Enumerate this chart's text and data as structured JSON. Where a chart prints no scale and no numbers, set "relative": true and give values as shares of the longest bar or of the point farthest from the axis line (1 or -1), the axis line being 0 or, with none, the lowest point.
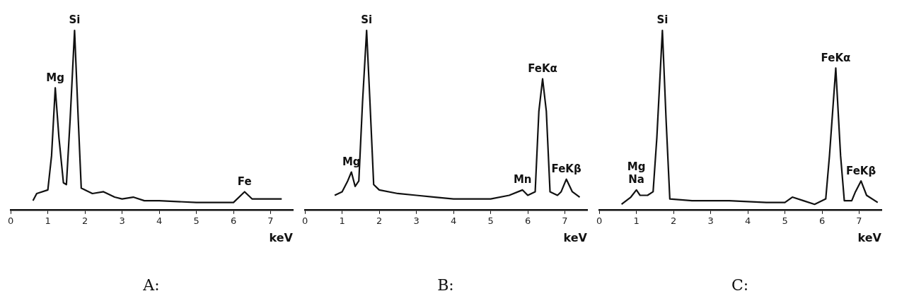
{
  "chart_data": [
    {
      "type": "line",
      "title": "A:",
      "xlabel": "keV",
      "relative": true,
      "marker": "none",
      "color": "#111111",
      "xlim": [
        0,
        7.6
      ],
      "xticks": [
        0,
        1,
        2,
        3,
        4,
        5,
        6,
        7
      ],
      "x": [
        0.6,
        0.7,
        1.0,
        1.1,
        1.2,
        1.3,
        1.42,
        1.5,
        1.6,
        1.72,
        1.82,
        1.9,
        2.2,
        2.5,
        2.8,
        3.0,
        3.3,
        3.6,
        4.0,
        5.0,
        5.7,
        6.0,
        6.3,
        6.5,
        6.7,
        7.0,
        7.3
      ],
      "values": [
        0.05,
        0.09,
        0.11,
        0.3,
        0.68,
        0.4,
        0.15,
        0.14,
        0.5,
        1,
        0.5,
        0.12,
        0.09,
        0.1,
        0.07,
        0.06,
        0.07,
        0.05,
        0.05,
        0.04,
        0.04,
        0.04,
        0.1,
        0.06,
        0.06,
        0.06,
        0.06
      ],
      "annotations": [
        {
          "text": "Mg",
          "x": 1.2,
          "y": 0.68
        },
        {
          "text": "Si",
          "x": 1.72,
          "y": 1
        },
        {
          "text": "Fe",
          "x": 6.3,
          "y": 0.1
        }
      ]
    },
    {
      "type": "line",
      "title": "B:",
      "xlabel": "keV",
      "relative": true,
      "marker": "none",
      "color": "#111111",
      "xlim": [
        0,
        7.6
      ],
      "xticks": [
        0,
        1,
        2,
        3,
        4,
        5,
        6,
        7
      ],
      "x": [
        0.8,
        1.0,
        1.15,
        1.25,
        1.35,
        1.45,
        1.55,
        1.66,
        1.75,
        1.85,
        2.0,
        2.5,
        3.0,
        3.5,
        4.0,
        4.5,
        5.0,
        5.5,
        5.86,
        6.0,
        6.2,
        6.3,
        6.4,
        6.5,
        6.6,
        6.8,
        6.9,
        7.04,
        7.2,
        7.4
      ],
      "values": [
        0.08,
        0.1,
        0.16,
        0.21,
        0.13,
        0.16,
        0.6,
        1,
        0.6,
        0.14,
        0.11,
        0.09,
        0.08,
        0.07,
        0.06,
        0.06,
        0.06,
        0.08,
        0.11,
        0.08,
        0.1,
        0.55,
        0.73,
        0.55,
        0.1,
        0.08,
        0.1,
        0.17,
        0.1,
        0.07
      ],
      "annotations": [
        {
          "text": "Mg",
          "x": 1.25,
          "y": 0.21
        },
        {
          "text": "Si",
          "x": 1.66,
          "y": 1
        },
        {
          "text": "Mn",
          "x": 5.86,
          "y": 0.11
        },
        {
          "text": "FeKα",
          "x": 6.4,
          "y": 0.73
        },
        {
          "text": "FeKβ",
          "x": 7.04,
          "y": 0.17
        }
      ]
    },
    {
      "type": "line",
      "title": "C:",
      "xlabel": "keV",
      "relative": true,
      "marker": "none",
      "color": "#111111",
      "xlim": [
        0,
        7.6
      ],
      "xticks": [
        0,
        1,
        2,
        3,
        4,
        5,
        6,
        7
      ],
      "x": [
        0.6,
        0.85,
        1.0,
        1.1,
        1.3,
        1.45,
        1.55,
        1.7,
        1.8,
        1.9,
        2.5,
        3.5,
        4.5,
        5.0,
        5.2,
        5.5,
        5.8,
        6.1,
        6.2,
        6.37,
        6.5,
        6.6,
        6.8,
        6.9,
        7.05,
        7.2,
        7.5
      ],
      "values": [
        0.03,
        0.07,
        0.11,
        0.08,
        0.08,
        0.1,
        0.4,
        1,
        0.5,
        0.06,
        0.05,
        0.05,
        0.04,
        0.04,
        0.07,
        0.05,
        0.03,
        0.06,
        0.3,
        0.79,
        0.3,
        0.05,
        0.05,
        0.1,
        0.16,
        0.08,
        0.04
      ],
      "annotations": [
        {
          "text": "Na",
          "x": 1.0,
          "y": 0.11
        },
        {
          "text": "Mg",
          "x": 1.0,
          "y": 0.11
        },
        {
          "text": "Si",
          "x": 1.7,
          "y": 1
        },
        {
          "text": "FeKα",
          "x": 6.37,
          "y": 0.79
        },
        {
          "text": "FeKβ",
          "x": 7.05,
          "y": 0.16
        }
      ]
    }
  ]
}
